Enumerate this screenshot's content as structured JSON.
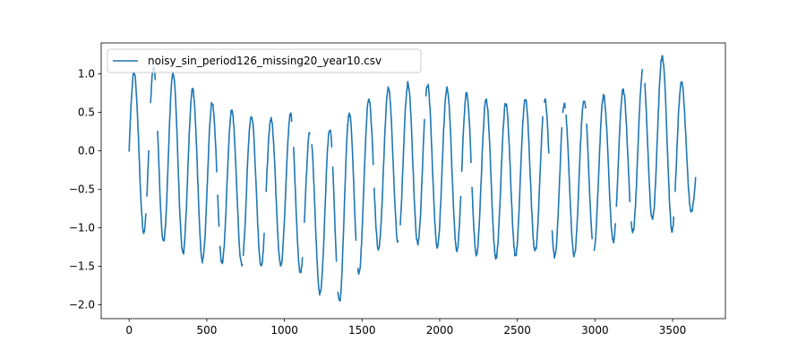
{
  "chart_data": {
    "type": "line",
    "title": "",
    "xlabel": "",
    "ylabel": "",
    "xlim": [
      -180,
      3840
    ],
    "ylim": [
      -2.18,
      1.4
    ],
    "x_ticks": [
      0,
      500,
      1000,
      1500,
      2000,
      2500,
      3000,
      3500
    ],
    "y_ticks": [
      -2.0,
      -1.5,
      -1.0,
      -0.5,
      0.0,
      0.5,
      1.0
    ],
    "y_tick_labels": [
      "−2.0",
      "−1.5",
      "−1.0",
      "−0.5",
      "0.0",
      "0.5",
      "1.0"
    ],
    "grid": false,
    "legend_position": "upper left",
    "series": [
      {
        "name": "noisy_sin_period126_missing20_year10.csv",
        "color": "#1f77b4",
        "period": 126,
        "x_range": [
          0,
          3650
        ],
        "missing_fraction": 0.2,
        "baseline": {
          "x": [
            0,
            150,
            300,
            450,
            600,
            750,
            900,
            1050,
            1200,
            1300,
            1400,
            1500,
            1650,
            1800,
            2000,
            2200,
            2400,
            2600,
            2800,
            3000,
            3200,
            3400,
            3650
          ],
          "y": [
            0.0,
            0.0,
            -0.15,
            -0.35,
            -0.45,
            -0.5,
            -0.55,
            -0.5,
            -0.8,
            -0.85,
            -0.7,
            -0.45,
            -0.2,
            -0.15,
            -0.2,
            -0.3,
            -0.4,
            -0.3,
            -0.4,
            -0.3,
            -0.15,
            0.2,
            -0.15
          ]
        },
        "amplitude": {
          "x": [
            0,
            300,
            600,
            900,
            1200,
            1350,
            1600,
            2000,
            2400,
            2800,
            3200,
            3500,
            3650
          ],
          "y": [
            1.0,
            1.15,
            1.0,
            0.95,
            1.0,
            1.2,
            1.0,
            1.05,
            1.0,
            1.0,
            0.95,
            1.1,
            0.6
          ]
        }
      }
    ]
  }
}
